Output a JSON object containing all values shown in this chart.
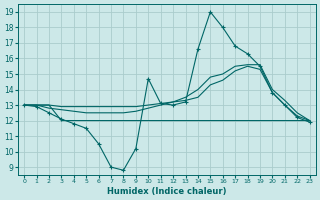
{
  "xlabel": "Humidex (Indice chaleur)",
  "bg_color": "#cce8e8",
  "grid_color": "#aacccc",
  "line_color": "#006666",
  "xlim": [
    -0.5,
    23.5
  ],
  "ylim": [
    8.5,
    19.5
  ],
  "yticks": [
    9,
    10,
    11,
    12,
    13,
    14,
    15,
    16,
    17,
    18,
    19
  ],
  "xticks": [
    0,
    1,
    2,
    3,
    4,
    5,
    6,
    7,
    8,
    9,
    10,
    11,
    12,
    13,
    14,
    15,
    16,
    17,
    18,
    19,
    20,
    21,
    22,
    23
  ],
  "series": [
    {
      "x": [
        0,
        1,
        2,
        3,
        4,
        5,
        6,
        7,
        8,
        9,
        10,
        11,
        12,
        13,
        14,
        15,
        16,
        17,
        18,
        19,
        20,
        21,
        22,
        23
      ],
      "y": [
        13,
        12.9,
        12.5,
        12.1,
        11.8,
        11.5,
        10.5,
        9.0,
        8.8,
        10.2,
        14.7,
        13.1,
        13.0,
        13.2,
        16.6,
        19.0,
        18.0,
        16.8,
        16.3,
        15.5,
        13.8,
        13.0,
        12.2,
        11.9
      ],
      "marker": "+"
    },
    {
      "x": [
        0,
        1,
        2,
        3,
        4,
        5,
        6,
        7,
        8,
        9,
        10,
        11,
        12,
        13,
        14,
        15,
        16,
        17,
        18,
        19,
        20,
        21,
        22,
        23
      ],
      "y": [
        13,
        13,
        13,
        12,
        12,
        12,
        12,
        12,
        12,
        12,
        12,
        12,
        12,
        12,
        12,
        12,
        12,
        12,
        12,
        12,
        12,
        12,
        12,
        12
      ],
      "marker": null
    },
    {
      "x": [
        0,
        1,
        2,
        3,
        4,
        5,
        6,
        7,
        8,
        9,
        10,
        11,
        12,
        13,
        14,
        15,
        16,
        17,
        18,
        19,
        20,
        21,
        22,
        23
      ],
      "y": [
        13,
        13,
        13,
        12.9,
        12.9,
        12.9,
        12.9,
        12.9,
        12.9,
        12.9,
        13.0,
        13.1,
        13.2,
        13.3,
        13.5,
        14.3,
        14.6,
        15.2,
        15.5,
        15.3,
        13.8,
        13.0,
        12.3,
        12.0
      ],
      "marker": null
    },
    {
      "x": [
        0,
        1,
        2,
        3,
        4,
        5,
        6,
        7,
        8,
        9,
        10,
        11,
        12,
        13,
        14,
        15,
        16,
        17,
        18,
        19,
        20,
        21,
        22,
        23
      ],
      "y": [
        13,
        13,
        12.8,
        12.7,
        12.6,
        12.5,
        12.5,
        12.5,
        12.5,
        12.6,
        12.8,
        13.0,
        13.2,
        13.5,
        14.0,
        14.8,
        15.0,
        15.5,
        15.6,
        15.6,
        14.0,
        13.3,
        12.5,
        12.0
      ],
      "marker": null
    }
  ]
}
